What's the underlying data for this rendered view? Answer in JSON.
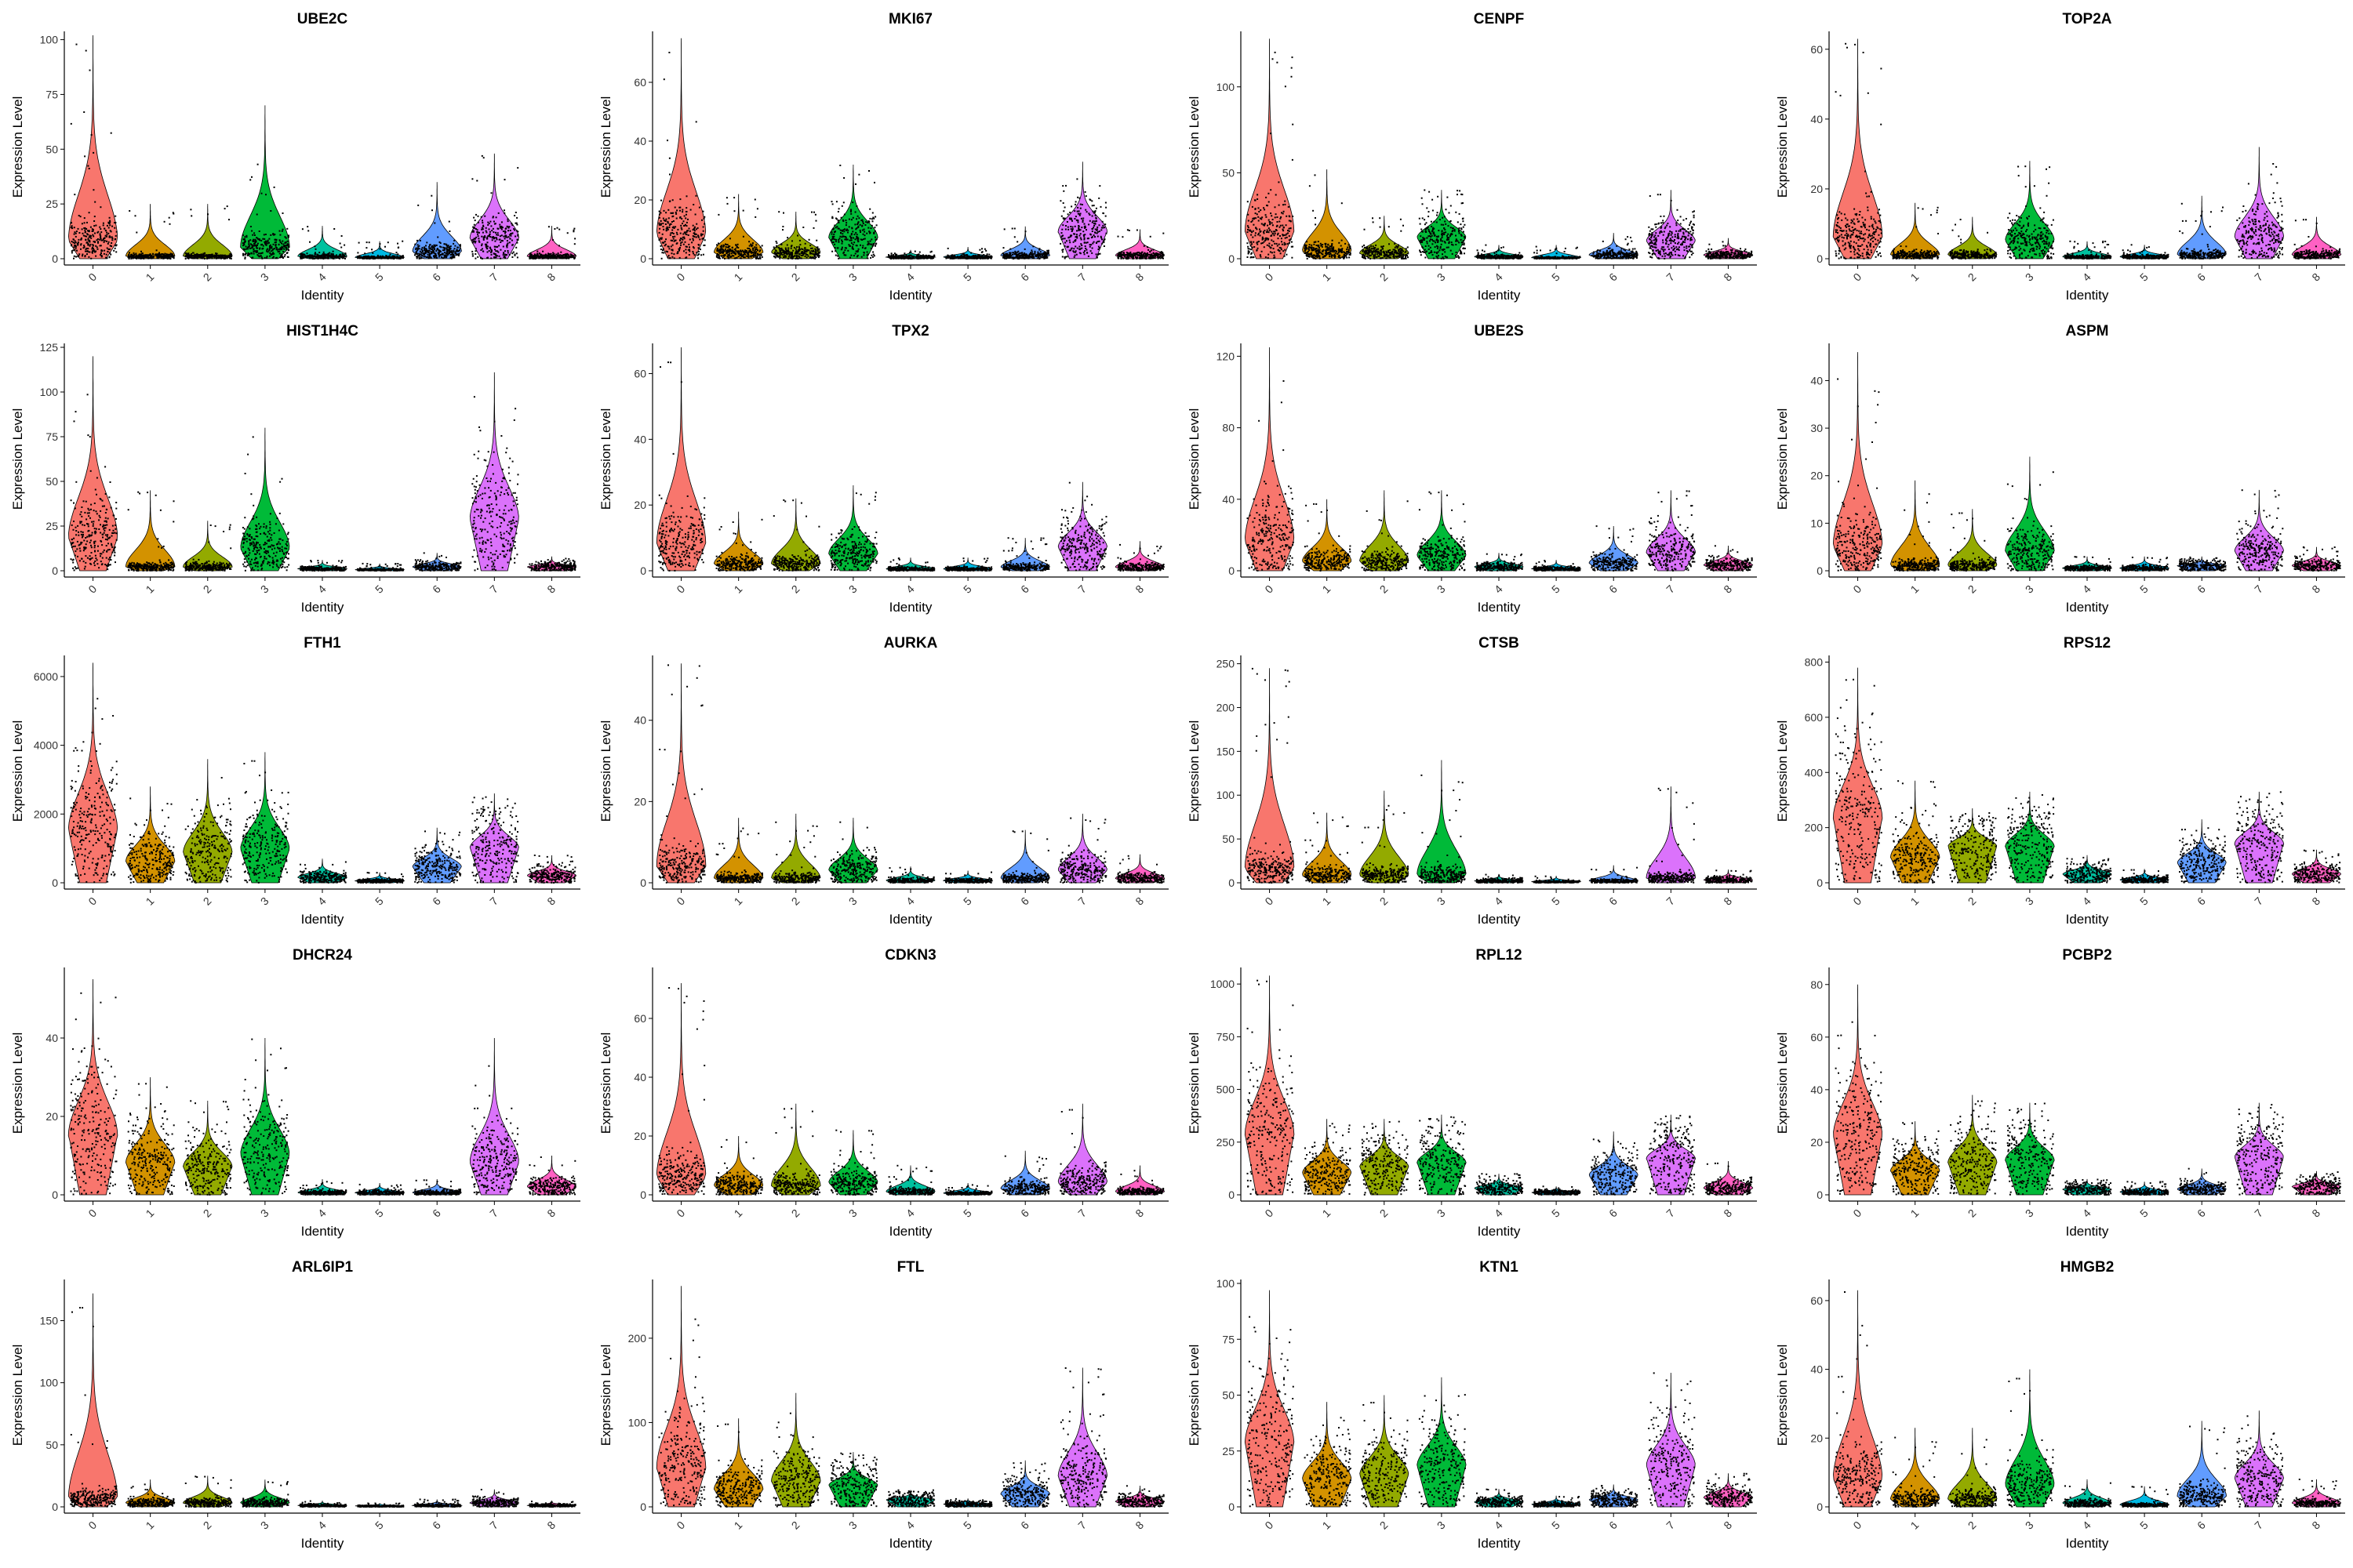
{
  "figure": {
    "x_axis_label": "Identity",
    "y_axis_label": "Expression Level"
  },
  "cluster_colors": [
    "#f8766d",
    "#d39200",
    "#93aa00",
    "#00ba38",
    "#00c19f",
    "#00b9e3",
    "#619cff",
    "#db72fb",
    "#ff61c3"
  ],
  "chart_data": [
    {
      "type": "violin",
      "title": "UBE2C",
      "xlabel": "Identity",
      "ylabel": "Expression Level",
      "categories": [
        "0",
        "1",
        "2",
        "3",
        "4",
        "5",
        "6",
        "7",
        "8"
      ],
      "ylim": [
        0,
        102
      ],
      "yticks": [
        0,
        25,
        50,
        75,
        100
      ],
      "medians": [
        8,
        1,
        1,
        5,
        1,
        0.5,
        3,
        9,
        1
      ],
      "max": [
        102,
        25,
        25,
        70,
        15,
        8,
        35,
        48,
        15
      ]
    },
    {
      "type": "violin",
      "title": "MKI67",
      "xlabel": "Identity",
      "ylabel": "Expression Level",
      "categories": [
        "0",
        "1",
        "2",
        "3",
        "4",
        "5",
        "6",
        "7",
        "8"
      ],
      "ylim": [
        0,
        76
      ],
      "yticks": [
        0,
        20,
        40,
        60
      ],
      "medians": [
        8,
        2,
        2,
        7,
        0.5,
        0.5,
        1,
        9,
        1
      ],
      "max": [
        75,
        22,
        16,
        32,
        3,
        4,
        11,
        33,
        10
      ]
    },
    {
      "type": "violin",
      "title": "CENPF",
      "xlabel": "Identity",
      "ylabel": "Expression Level",
      "categories": [
        "0",
        "1",
        "2",
        "3",
        "4",
        "5",
        "6",
        "7",
        "8"
      ],
      "ylim": [
        0,
        130
      ],
      "yticks": [
        0,
        50,
        100
      ],
      "medians": [
        15,
        4,
        3,
        12,
        1,
        0.5,
        2,
        10,
        2
      ],
      "max": [
        128,
        52,
        25,
        40,
        8,
        8,
        15,
        40,
        12
      ]
    },
    {
      "type": "violin",
      "title": "TOP2A",
      "xlabel": "Identity",
      "ylabel": "Expression Level",
      "categories": [
        "0",
        "1",
        "2",
        "3",
        "4",
        "5",
        "6",
        "7",
        "8"
      ],
      "ylim": [
        0,
        64
      ],
      "yticks": [
        0,
        20,
        40,
        60
      ],
      "medians": [
        6,
        1,
        1,
        5,
        0.5,
        0.5,
        1,
        6,
        1
      ],
      "max": [
        63,
        16,
        12,
        28,
        5,
        4,
        18,
        32,
        12
      ]
    },
    {
      "type": "violin",
      "title": "HIST1H4C",
      "xlabel": "Identity",
      "ylabel": "Expression Level",
      "categories": [
        "0",
        "1",
        "2",
        "3",
        "4",
        "5",
        "6",
        "7",
        "8"
      ],
      "ylim": [
        0,
        125
      ],
      "yticks": [
        0,
        25,
        50,
        75,
        100,
        125
      ],
      "medians": [
        18,
        2,
        2,
        12,
        1,
        0.5,
        2,
        28,
        2
      ],
      "max": [
        120,
        45,
        28,
        80,
        6,
        4,
        10,
        111,
        8
      ]
    },
    {
      "type": "violin",
      "title": "TPX2",
      "xlabel": "Identity",
      "ylabel": "Expression Level",
      "categories": [
        "0",
        "1",
        "2",
        "3",
        "4",
        "5",
        "6",
        "7",
        "8"
      ],
      "ylim": [
        0,
        68
      ],
      "yticks": [
        0,
        20,
        40,
        60
      ],
      "medians": [
        8,
        2,
        2,
        5,
        0.5,
        0.5,
        1,
        7,
        1
      ],
      "max": [
        68,
        18,
        22,
        26,
        4,
        4,
        10,
        27,
        9
      ]
    },
    {
      "type": "violin",
      "title": "UBE2S",
      "xlabel": "Identity",
      "ylabel": "Expression Level",
      "categories": [
        "0",
        "1",
        "2",
        "3",
        "4",
        "5",
        "6",
        "7",
        "8"
      ],
      "ylim": [
        0,
        125
      ],
      "yticks": [
        0,
        40,
        80,
        120
      ],
      "medians": [
        16,
        5,
        5,
        8,
        2,
        1,
        4,
        10,
        3
      ],
      "max": [
        125,
        40,
        45,
        45,
        10,
        6,
        25,
        45,
        14
      ]
    },
    {
      "type": "violin",
      "title": "ASPM",
      "xlabel": "Identity",
      "ylabel": "Expression Level",
      "categories": [
        "0",
        "1",
        "2",
        "3",
        "4",
        "5",
        "6",
        "7",
        "8"
      ],
      "ylim": [
        0,
        47
      ],
      "yticks": [
        0,
        10,
        20,
        30,
        40
      ],
      "medians": [
        5,
        1,
        1,
        4,
        0.5,
        0.5,
        1,
        4,
        1
      ],
      "max": [
        46,
        19,
        13,
        24,
        3,
        3,
        3,
        17,
        5
      ]
    },
    {
      "type": "violin",
      "title": "FTH1",
      "xlabel": "Identity",
      "ylabel": "Expression Level",
      "categories": [
        "0",
        "1",
        "2",
        "3",
        "4",
        "5",
        "6",
        "7",
        "8"
      ],
      "ylim": [
        0,
        6500
      ],
      "yticks": [
        0,
        2000,
        4000,
        6000
      ],
      "medians": [
        1500,
        600,
        850,
        950,
        150,
        50,
        450,
        1000,
        200
      ],
      "max": [
        6400,
        2800,
        3600,
        3800,
        700,
        300,
        1600,
        2600,
        800
      ]
    },
    {
      "type": "violin",
      "title": "AURKA",
      "xlabel": "Identity",
      "ylabel": "Expression Level",
      "categories": [
        "0",
        "1",
        "2",
        "3",
        "4",
        "5",
        "6",
        "7",
        "8"
      ],
      "ylim": [
        0,
        55
      ],
      "yticks": [
        0,
        20,
        40
      ],
      "medians": [
        4,
        1,
        1,
        3,
        0.5,
        0.5,
        1,
        3,
        1
      ],
      "max": [
        54,
        16,
        17,
        16,
        4,
        3,
        13,
        17,
        7
      ]
    },
    {
      "type": "violin",
      "title": "CTSB",
      "xlabel": "Identity",
      "ylabel": "Expression Level",
      "categories": [
        "0",
        "1",
        "2",
        "3",
        "4",
        "5",
        "6",
        "7",
        "8"
      ],
      "ylim": [
        0,
        255
      ],
      "yticks": [
        0,
        50,
        100,
        150,
        200,
        250
      ],
      "medians": [
        15,
        8,
        8,
        8,
        2,
        1,
        2,
        5,
        3
      ],
      "max": [
        245,
        80,
        105,
        140,
        10,
        8,
        20,
        110,
        15
      ]
    },
    {
      "type": "violin",
      "title": "RPS12",
      "xlabel": "Identity",
      "ylabel": "Expression Level",
      "categories": [
        "0",
        "1",
        "2",
        "3",
        "4",
        "5",
        "6",
        "7",
        "8"
      ],
      "ylim": [
        0,
        810
      ],
      "yticks": [
        0,
        200,
        400,
        600,
        800
      ],
      "medians": [
        230,
        90,
        130,
        130,
        30,
        10,
        70,
        140,
        30
      ],
      "max": [
        780,
        370,
        270,
        330,
        100,
        50,
        230,
        330,
        120
      ]
    },
    {
      "type": "violin",
      "title": "DHCR24",
      "xlabel": "Identity",
      "ylabel": "Expression Level",
      "categories": [
        "0",
        "1",
        "2",
        "3",
        "4",
        "5",
        "6",
        "7",
        "8"
      ],
      "ylim": [
        0,
        57
      ],
      "yticks": [
        0,
        20,
        40
      ],
      "medians": [
        15,
        8,
        7,
        10,
        0.5,
        0.5,
        0.5,
        8,
        2
      ],
      "max": [
        55,
        30,
        24,
        40,
        4,
        3,
        4,
        40,
        10
      ]
    },
    {
      "type": "violin",
      "title": "CDKN3",
      "xlabel": "Identity",
      "ylabel": "Expression Level",
      "categories": [
        "0",
        "1",
        "2",
        "3",
        "4",
        "5",
        "6",
        "7",
        "8"
      ],
      "ylim": [
        0,
        76
      ],
      "yticks": [
        0,
        20,
        40,
        60
      ],
      "medians": [
        6,
        3,
        3,
        4,
        1,
        0.5,
        2,
        4,
        1
      ],
      "max": [
        72,
        20,
        31,
        22,
        10,
        4,
        15,
        31,
        10
      ]
    },
    {
      "type": "violin",
      "title": "RPL12",
      "xlabel": "Identity",
      "ylabel": "Expression Level",
      "categories": [
        "0",
        "1",
        "2",
        "3",
        "4",
        "5",
        "6",
        "7",
        "8"
      ],
      "ylim": [
        0,
        1060
      ],
      "yticks": [
        0,
        250,
        500,
        750,
        1000
      ],
      "medians": [
        280,
        100,
        130,
        150,
        30,
        10,
        90,
        170,
        30
      ],
      "max": [
        1040,
        360,
        360,
        380,
        100,
        40,
        300,
        380,
        160
      ]
    },
    {
      "type": "violin",
      "title": "PCBP2",
      "xlabel": "Identity",
      "ylabel": "Expression Level",
      "categories": [
        "0",
        "1",
        "2",
        "3",
        "4",
        "5",
        "6",
        "7",
        "8"
      ],
      "ylim": [
        0,
        85
      ],
      "yticks": [
        0,
        20,
        40,
        60,
        80
      ],
      "medians": [
        22,
        9,
        12,
        13,
        2,
        1,
        2,
        14,
        3
      ],
      "max": [
        80,
        28,
        38,
        35,
        6,
        5,
        10,
        35,
        9
      ]
    },
    {
      "type": "violin",
      "title": "ARL6IP1",
      "xlabel": "Identity",
      "ylabel": "Expression Level",
      "categories": [
        "0",
        "1",
        "2",
        "3",
        "4",
        "5",
        "6",
        "7",
        "8"
      ],
      "ylim": [
        0,
        180
      ],
      "yticks": [
        0,
        50,
        100,
        150
      ],
      "medians": [
        6,
        3,
        3,
        3,
        1,
        0.5,
        1,
        3,
        1
      ],
      "max": [
        172,
        22,
        25,
        22,
        5,
        3,
        6,
        14,
        5
      ]
    },
    {
      "type": "violin",
      "title": "FTL",
      "xlabel": "Identity",
      "ylabel": "Expression Level",
      "categories": [
        "0",
        "1",
        "2",
        "3",
        "4",
        "5",
        "6",
        "7",
        "8"
      ],
      "ylim": [
        0,
        265
      ],
      "yticks": [
        0,
        100,
        200
      ],
      "medians": [
        45,
        20,
        30,
        25,
        8,
        3,
        15,
        35,
        6
      ],
      "max": [
        262,
        105,
        135,
        65,
        20,
        10,
        55,
        165,
        25
      ]
    },
    {
      "type": "violin",
      "title": "KTN1",
      "xlabel": "Identity",
      "ylabel": "Expression Level",
      "categories": [
        "0",
        "1",
        "2",
        "3",
        "4",
        "5",
        "6",
        "7",
        "8"
      ],
      "ylim": [
        0,
        100
      ],
      "yticks": [
        0,
        25,
        50,
        75,
        100
      ],
      "medians": [
        28,
        12,
        14,
        18,
        2,
        1,
        3,
        18,
        4
      ],
      "max": [
        97,
        47,
        50,
        58,
        8,
        5,
        10,
        60,
        15
      ]
    },
    {
      "type": "violin",
      "title": "HMGB2",
      "xlabel": "Identity",
      "ylabel": "Expression Level",
      "categories": [
        "0",
        "1",
        "2",
        "3",
        "4",
        "5",
        "6",
        "7",
        "8"
      ],
      "ylim": [
        0,
        65
      ],
      "yticks": [
        0,
        20,
        40,
        60
      ],
      "medians": [
        8,
        2,
        2,
        6,
        1,
        0.5,
        3,
        8,
        1
      ],
      "max": [
        63,
        23,
        23,
        40,
        8,
        6,
        25,
        28,
        8
      ]
    }
  ]
}
